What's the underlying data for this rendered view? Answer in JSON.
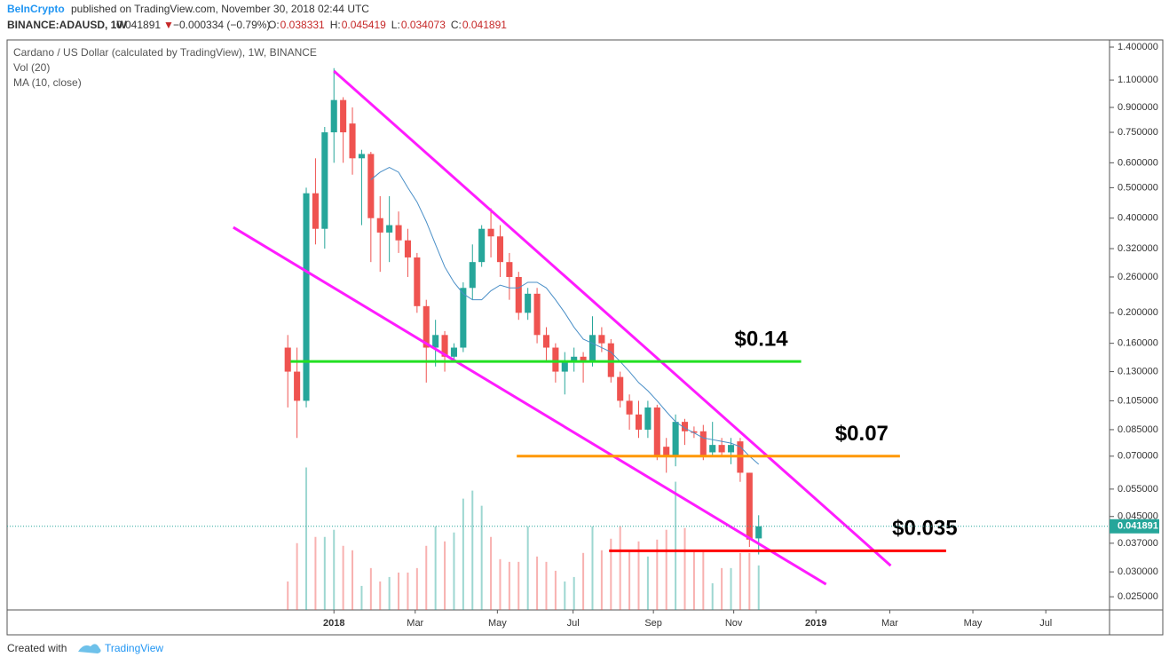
{
  "header": {
    "author": "BeInCrypto",
    "published": "published on TradingView.com, November 30, 2018 02:44 UTC",
    "symbol": "BINANCE:ADAUSD, 1W",
    "last": "0.041891",
    "change": "−0.000334 (−0.79%)",
    "ohlc": [
      "O:",
      "H:",
      "L:",
      "C:"
    ]
  },
  "footer": {
    "created": "Created with",
    "brand": "TradingView"
  },
  "chart_data": {
    "type": "candlestick",
    "title": "Cardano / US Dollar (calculated by TradingView), 1W, BINANCE",
    "log_scale": true,
    "grid": false,
    "up_color": "#26a69a",
    "down_color": "#ef5350",
    "categories": [
      null,
      null,
      null,
      null,
      null,
      null,
      null,
      null,
      null,
      null,
      null,
      null,
      null,
      null,
      null,
      null,
      null,
      null,
      null,
      null,
      null,
      null,
      null,
      null,
      null,
      null,
      null,
      null,
      null,
      null,
      null,
      null,
      null,
      null,
      null,
      null,
      null,
      null,
      null,
      null,
      null,
      null,
      null,
      null,
      null,
      null,
      null,
      null,
      null,
      null,
      null,
      null
    ],
    "open": [
      0.155,
      0.13,
      0.105,
      0.48,
      0.37,
      0.75,
      0.95,
      0.8,
      0.62,
      0.64,
      0.4,
      0.36,
      0.38,
      0.34,
      0.3,
      0.21,
      0.155,
      0.17,
      0.145,
      0.155,
      0.24,
      0.29,
      0.37,
      0.35,
      0.29,
      0.26,
      0.2,
      0.23,
      0.17,
      0.155,
      0.13,
      0.14,
      0.145,
      0.14,
      0.17,
      0.16,
      0.125,
      0.105,
      0.095,
      0.085,
      0.1,
      0.075,
      0.07,
      0.09,
      0.084,
      0.084,
      0.072,
      0.076,
      0.072,
      0.078,
      0.062,
      0.038331
    ],
    "high": [
      0.17,
      0.155,
      0.5,
      0.62,
      0.78,
      1.2,
      0.97,
      0.9,
      0.66,
      0.65,
      0.47,
      0.47,
      0.42,
      0.37,
      0.31,
      0.22,
      0.19,
      0.175,
      0.16,
      0.25,
      0.33,
      0.38,
      0.43,
      0.38,
      0.31,
      0.27,
      0.24,
      0.24,
      0.18,
      0.16,
      0.15,
      0.155,
      0.15,
      0.195,
      0.18,
      0.165,
      0.13,
      0.11,
      0.105,
      0.105,
      0.102,
      0.08,
      0.095,
      0.092,
      0.087,
      0.088,
      0.09,
      0.08,
      0.08,
      0.08,
      0.062,
      0.045419
    ],
    "low": [
      0.1,
      0.08,
      0.1,
      0.33,
      0.32,
      0.6,
      0.6,
      0.55,
      0.38,
      0.29,
      0.27,
      0.29,
      0.31,
      0.26,
      0.2,
      0.12,
      0.135,
      0.13,
      0.14,
      0.15,
      0.22,
      0.28,
      0.3,
      0.26,
      0.22,
      0.19,
      0.19,
      0.16,
      0.14,
      0.12,
      0.11,
      0.13,
      0.12,
      0.135,
      0.15,
      0.12,
      0.1,
      0.085,
      0.08,
      0.08,
      0.068,
      0.062,
      0.065,
      0.076,
      0.08,
      0.068,
      0.07,
      0.07,
      0.066,
      0.058,
      0.036,
      0.034073
    ],
    "close": [
      0.13,
      0.105,
      0.48,
      0.37,
      0.75,
      0.95,
      0.75,
      0.62,
      0.64,
      0.4,
      0.36,
      0.38,
      0.34,
      0.3,
      0.21,
      0.155,
      0.17,
      0.145,
      0.155,
      0.24,
      0.29,
      0.37,
      0.35,
      0.29,
      0.26,
      0.2,
      0.23,
      0.17,
      0.155,
      0.13,
      0.14,
      0.145,
      0.14,
      0.17,
      0.16,
      0.125,
      0.105,
      0.095,
      0.085,
      0.1,
      0.07,
      0.07,
      0.09,
      0.084,
      0.083,
      0.07,
      0.076,
      0.072,
      0.076,
      0.062,
      0.038,
      0.041891
    ],
    "volume": {
      "name": "Vol (20)",
      "axis": "y2",
      "values": [
        32,
        75,
        160,
        82,
        82,
        90,
        72,
        67,
        27,
        47,
        32,
        37,
        42,
        42,
        47,
        72,
        94,
        77,
        87,
        125,
        134,
        117,
        82,
        57,
        54,
        54,
        94,
        60,
        54,
        44,
        32,
        37,
        64,
        94,
        67,
        80,
        94,
        67,
        77,
        60,
        79,
        90,
        144,
        92,
        65,
        65,
        30,
        47,
        47,
        64,
        64,
        50
      ]
    },
    "ma": {
      "name": "MA (10, close)",
      "color": "#4a8fc7",
      "values": [
        null,
        null,
        null,
        null,
        null,
        null,
        null,
        null,
        null,
        0.53,
        0.56,
        0.58,
        0.56,
        0.5,
        0.45,
        0.39,
        0.33,
        0.28,
        0.25,
        0.23,
        0.22,
        0.22,
        0.235,
        0.245,
        0.24,
        0.24,
        0.25,
        0.25,
        0.24,
        0.22,
        0.2,
        0.18,
        0.165,
        0.16,
        0.155,
        0.15,
        0.14,
        0.13,
        0.12,
        0.113,
        0.105,
        0.097,
        0.09,
        0.086,
        0.083,
        0.08,
        0.079,
        0.078,
        0.077,
        0.075,
        0.07,
        0.066
      ]
    },
    "ylim": [
      0.0227,
      1.475
    ],
    "y2lim": [
      0,
      640
    ],
    "yticks": [
      {
        "value": 1.4,
        "label": "1.400000"
      },
      {
        "value": 1.1,
        "label": "1.100000"
      },
      {
        "value": 0.9,
        "label": "0.900000"
      },
      {
        "value": 0.75,
        "label": "0.750000"
      },
      {
        "value": 0.6,
        "label": "0.600000"
      },
      {
        "value": 0.5,
        "label": "0.500000"
      },
      {
        "value": 0.4,
        "label": "0.400000"
      },
      {
        "value": 0.32,
        "label": "0.320000"
      },
      {
        "value": 0.26,
        "label": "0.260000"
      },
      {
        "value": 0.2,
        "label": "0.200000"
      },
      {
        "value": 0.16,
        "label": "0.160000"
      },
      {
        "value": 0.13,
        "label": "0.130000"
      },
      {
        "value": 0.105,
        "label": "0.105000"
      },
      {
        "value": 0.085,
        "label": "0.085000"
      },
      {
        "value": 0.07,
        "label": "0.070000"
      },
      {
        "value": 0.055,
        "label": "0.055000"
      },
      {
        "value": 0.045,
        "label": "0.045000"
      },
      {
        "value": 0.037,
        "label": "0.037000"
      },
      {
        "value": 0.03,
        "label": "0.030000"
      },
      {
        "value": 0.025,
        "label": "0.025000"
      }
    ],
    "xlim": [
      -30.4,
      89
    ],
    "xticks": [
      {
        "value": 5,
        "label": "2018"
      },
      {
        "value": 13.8,
        "label": "Mar"
      },
      {
        "value": 22.7,
        "label": "May"
      },
      {
        "value": 30.9,
        "label": "Jul"
      },
      {
        "value": 39.6,
        "label": "Sep"
      },
      {
        "value": 48.3,
        "label": "Nov"
      },
      {
        "value": 57.2,
        "label": "2019"
      },
      {
        "value": 65.2,
        "label": "Mar"
      },
      {
        "value": 74.2,
        "label": "May"
      },
      {
        "value": 82.1,
        "label": "Jul"
      }
    ],
    "levels": [
      {
        "label": "$0.14",
        "value": 0.14,
        "color": "#22e022",
        "x": [
          0.3,
          55.6
        ]
      },
      {
        "label": "$0.07",
        "value": 0.07,
        "color": "#ff9800",
        "x": [
          24.8,
          66.3
        ]
      },
      {
        "label": "$0.035",
        "value": 0.035,
        "color": "#ff0000",
        "x": [
          34.8,
          71.3
        ]
      }
    ],
    "trendlines": [
      {
        "color": "#ff1cff",
        "x": [
          5,
          65.3
        ],
        "y": [
          1.175,
          0.0314
        ]
      },
      {
        "color": "#ff1cff",
        "x": [
          -5.9,
          58.3
        ],
        "y": [
          0.374,
          0.0274
        ]
      }
    ]
  }
}
